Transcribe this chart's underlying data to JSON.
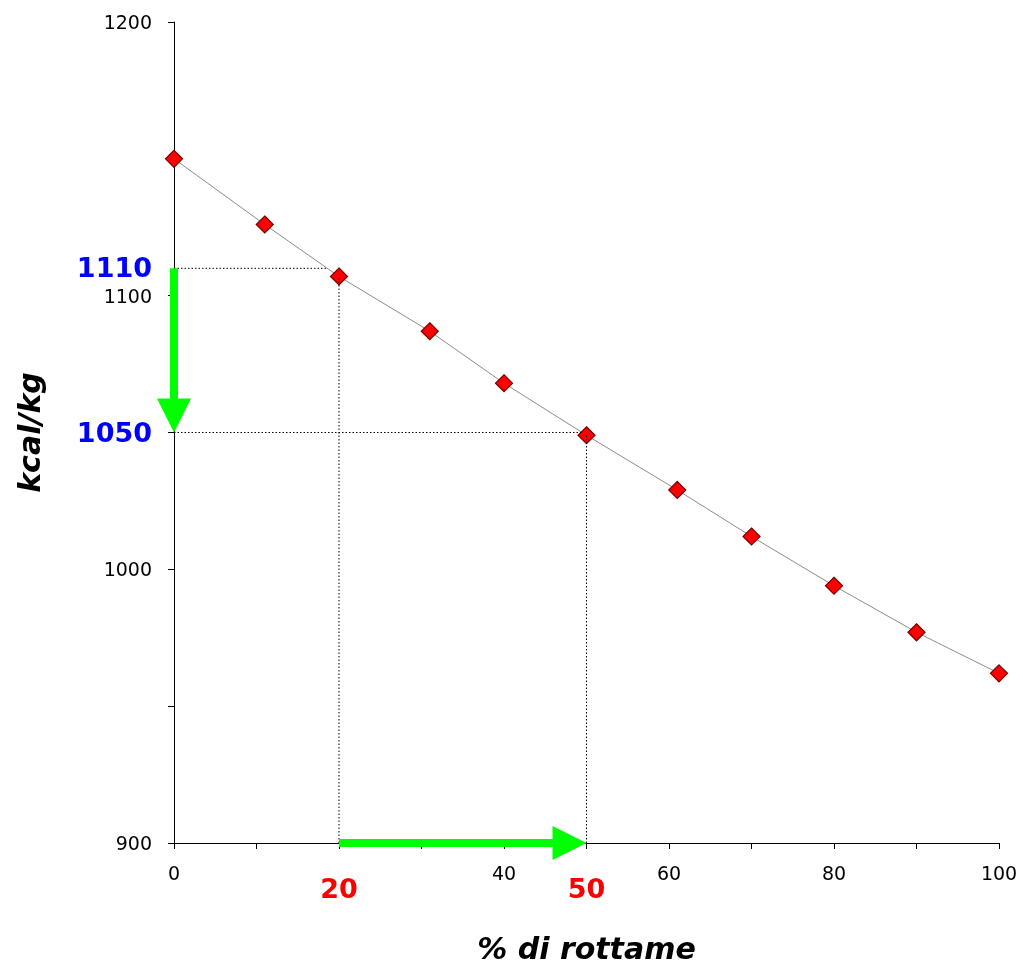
{
  "chart_data": {
    "type": "line",
    "xlabel": "% di rottame",
    "ylabel": "kcal/kg",
    "x": [
      0,
      11,
      20,
      31,
      40,
      50,
      61,
      70,
      80,
      90,
      100
    ],
    "series": [
      {
        "color": "#ff0000",
        "values": [
          1150,
          1126,
          1107,
          1087,
          1068,
          1049,
          1029,
          1012,
          994,
          977,
          962
        ]
      }
    ],
    "xlim": [
      0,
      100
    ],
    "ylim": [
      900,
      1200
    ],
    "xticks": [
      0,
      {
        "value": 10,
        "label": null
      },
      {
        "value": 20,
        "label": null
      },
      {
        "value": 30,
        "label": null
      },
      40,
      {
        "value": 50,
        "label": null
      },
      60,
      {
        "value": 70,
        "label": null
      },
      80,
      {
        "value": 90,
        "label": null
      },
      100
    ],
    "yticks": [
      900,
      {
        "value": 950,
        "label": null
      },
      1000,
      {
        "value": 1050,
        "label": null
      },
      1100,
      {
        "value": 1150,
        "label": null
      },
      1200
    ],
    "marker": "diamond",
    "grid": false,
    "ref_lines": [
      {
        "axis": "y",
        "value": 1110,
        "label": "1110",
        "line_style": "dotted"
      },
      {
        "axis": "y",
        "value": 1050,
        "label": "1050",
        "line_style": "dotted"
      },
      {
        "axis": "x",
        "value": 20,
        "label": "20",
        "line_style": "dotted"
      },
      {
        "axis": "x",
        "value": 50,
        "label": "50",
        "line_style": "dotted"
      }
    ]
  }
}
